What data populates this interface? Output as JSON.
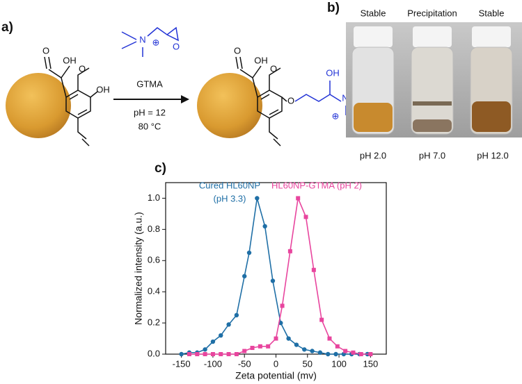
{
  "panels": {
    "a": "a)",
    "b": "b)",
    "c": "c)"
  },
  "scheme": {
    "left_atoms": [
      "O",
      "OH",
      "O",
      "OH"
    ],
    "reagent_atoms": [
      "N",
      "⊕",
      "O"
    ],
    "reagent": "GTMA",
    "conditions": [
      "pH = 12",
      "80 °C"
    ],
    "right_atoms": [
      "O",
      "OH",
      "O",
      "O",
      "OH",
      "N",
      "⊕"
    ]
  },
  "vials": {
    "status": [
      "Stable",
      "Precipitation",
      "Stable"
    ],
    "ph": [
      "pH 2.0",
      "pH 7.0",
      "pH 12.0"
    ]
  },
  "chart_data": {
    "type": "line",
    "x_label": "Zeta potential (mv)",
    "y_label": "Normalized intensity (a.u.)",
    "xlim": [
      -175,
      175
    ],
    "ylim": [
      0,
      1.1
    ],
    "xticks": [
      -150,
      -100,
      -50,
      0,
      50,
      100,
      150
    ],
    "yticks": [
      {
        "value": 0,
        "label": "0.0"
      },
      0.2,
      0.4,
      0.6,
      0.8,
      {
        "value": 1,
        "label": "1.0"
      }
    ],
    "series": [
      {
        "name": "Cured HL60NP",
        "label_lines": [
          "Cured HL60NP",
          "(pH 3.3)"
        ],
        "color": "#1f6fa6",
        "marker": "circle",
        "x": [
          -150,
          -137.5,
          -125,
          -112.5,
          -100,
          -87.5,
          -75,
          -62.5,
          -50,
          -42.5,
          -30,
          -17.5,
          -5,
          7.5,
          20,
          32.5,
          45,
          57.5,
          70,
          82.5,
          95,
          107.5,
          120,
          132.5,
          145
        ],
        "values": [
          0.0,
          0.01,
          0.01,
          0.03,
          0.08,
          0.12,
          0.19,
          0.25,
          0.5,
          0.65,
          1.0,
          0.82,
          0.47,
          0.2,
          0.1,
          0.06,
          0.03,
          0.02,
          0.01,
          0.0,
          0.0,
          0.0,
          0.0,
          0.0,
          0.0
        ]
      },
      {
        "name": "HL60NP-GTMA (pH 2)",
        "label_lines": [
          "HL60NP-GTMA (pH 2)"
        ],
        "color": "#e8459e",
        "marker": "square",
        "x": [
          -137.5,
          -125,
          -112.5,
          -100,
          -87.5,
          -75,
          -62.5,
          -50,
          -37.5,
          -25,
          -12.5,
          0,
          10,
          22.5,
          35,
          47.5,
          60,
          72.5,
          85,
          97.5,
          110,
          122.5,
          135,
          150
        ],
        "values": [
          0.0,
          0.0,
          0.0,
          0.0,
          0.0,
          0.0,
          0.0,
          0.02,
          0.04,
          0.05,
          0.05,
          0.1,
          0.31,
          0.66,
          1.0,
          0.88,
          0.54,
          0.22,
          0.1,
          0.05,
          0.02,
          0.01,
          0.0,
          0.0
        ]
      }
    ]
  }
}
